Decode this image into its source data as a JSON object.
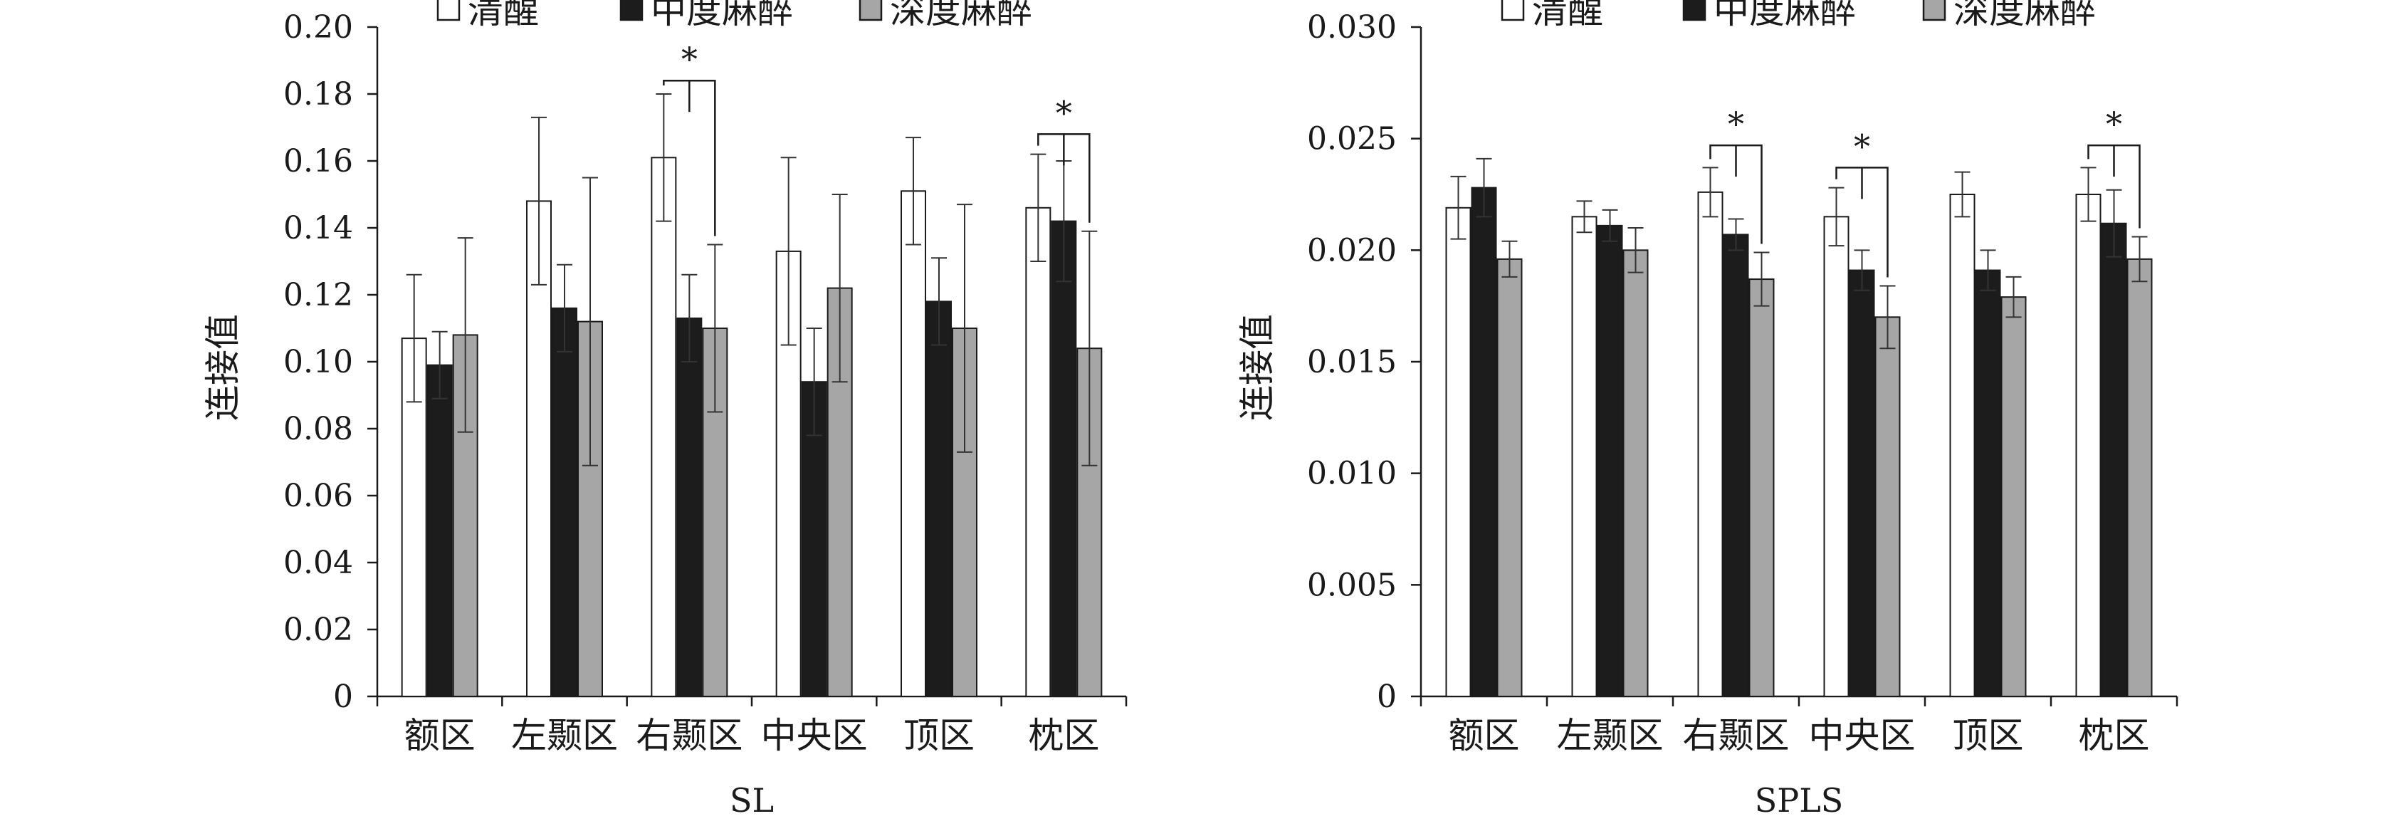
{
  "colors": {
    "清醒": "#ffffff",
    "中度麻醉": "#1c1c1c",
    "深度麻醉": "#a6a6a6",
    "axis": "#1a1a1a"
  },
  "chart_data": [
    {
      "type": "bar",
      "xlabel": "SL",
      "ylabel": "连接值",
      "ylim": [
        0,
        0.2
      ],
      "yticks": [
        "0",
        "0.02",
        "0.04",
        "0.06",
        "0.08",
        "0.10",
        "0.12",
        "0.14",
        "0.16",
        "0.18",
        "0.20"
      ],
      "legend_position": "top",
      "categories": [
        "额区",
        "左颞区",
        "右颞区",
        "中央区",
        "顶区",
        "枕区"
      ],
      "series": [
        {
          "name": "清醒",
          "values": [
            0.107,
            0.148,
            0.161,
            0.133,
            0.151,
            0.146
          ],
          "errors": [
            0.019,
            0.025,
            0.019,
            0.028,
            0.016,
            0.016
          ]
        },
        {
          "name": "中度麻醉",
          "values": [
            0.099,
            0.116,
            0.113,
            0.094,
            0.118,
            0.142
          ],
          "errors": [
            0.01,
            0.013,
            0.013,
            0.016,
            0.013,
            0.018
          ]
        },
        {
          "name": "深度麻醉",
          "values": [
            0.108,
            0.112,
            0.11,
            0.122,
            0.11,
            0.104
          ],
          "errors": [
            0.029,
            0.043,
            0.025,
            0.028,
            0.037,
            0.035
          ]
        }
      ],
      "significance": [
        {
          "category": "右颞区",
          "label": "*",
          "bracket_y": 0.184
        },
        {
          "category": "枕区",
          "label": "*",
          "bracket_y": 0.168
        }
      ]
    },
    {
      "type": "bar",
      "xlabel": "SPLS",
      "ylabel": "连接值",
      "ylim": [
        0,
        0.03
      ],
      "yticks": [
        "0",
        "0.005",
        "0.010",
        "0.015",
        "0.020",
        "0.025",
        "0.030"
      ],
      "legend_position": "top",
      "categories": [
        "额区",
        "左颞区",
        "右颞区",
        "中央区",
        "顶区",
        "枕区"
      ],
      "series": [
        {
          "name": "清醒",
          "values": [
            0.0219,
            0.0215,
            0.0226,
            0.0215,
            0.0225,
            0.0225
          ],
          "errors": [
            0.0014,
            0.0007,
            0.0011,
            0.0013,
            0.001,
            0.0012
          ]
        },
        {
          "name": "中度麻醉",
          "values": [
            0.0228,
            0.0211,
            0.0207,
            0.0191,
            0.0191,
            0.0212
          ],
          "errors": [
            0.0013,
            0.0007,
            0.0007,
            0.0009,
            0.0009,
            0.0015
          ]
        },
        {
          "name": "深度麻醉",
          "values": [
            0.0196,
            0.02,
            0.0187,
            0.017,
            0.0179,
            0.0196
          ],
          "errors": [
            0.0008,
            0.001,
            0.0012,
            0.0014,
            0.0009,
            0.001
          ]
        }
      ],
      "significance": [
        {
          "category": "右颞区",
          "label": "*",
          "bracket_y": 0.0247
        },
        {
          "category": "中央区",
          "label": "*",
          "bracket_y": 0.0237
        },
        {
          "category": "枕区",
          "label": "*",
          "bracket_y": 0.0247
        }
      ]
    }
  ]
}
